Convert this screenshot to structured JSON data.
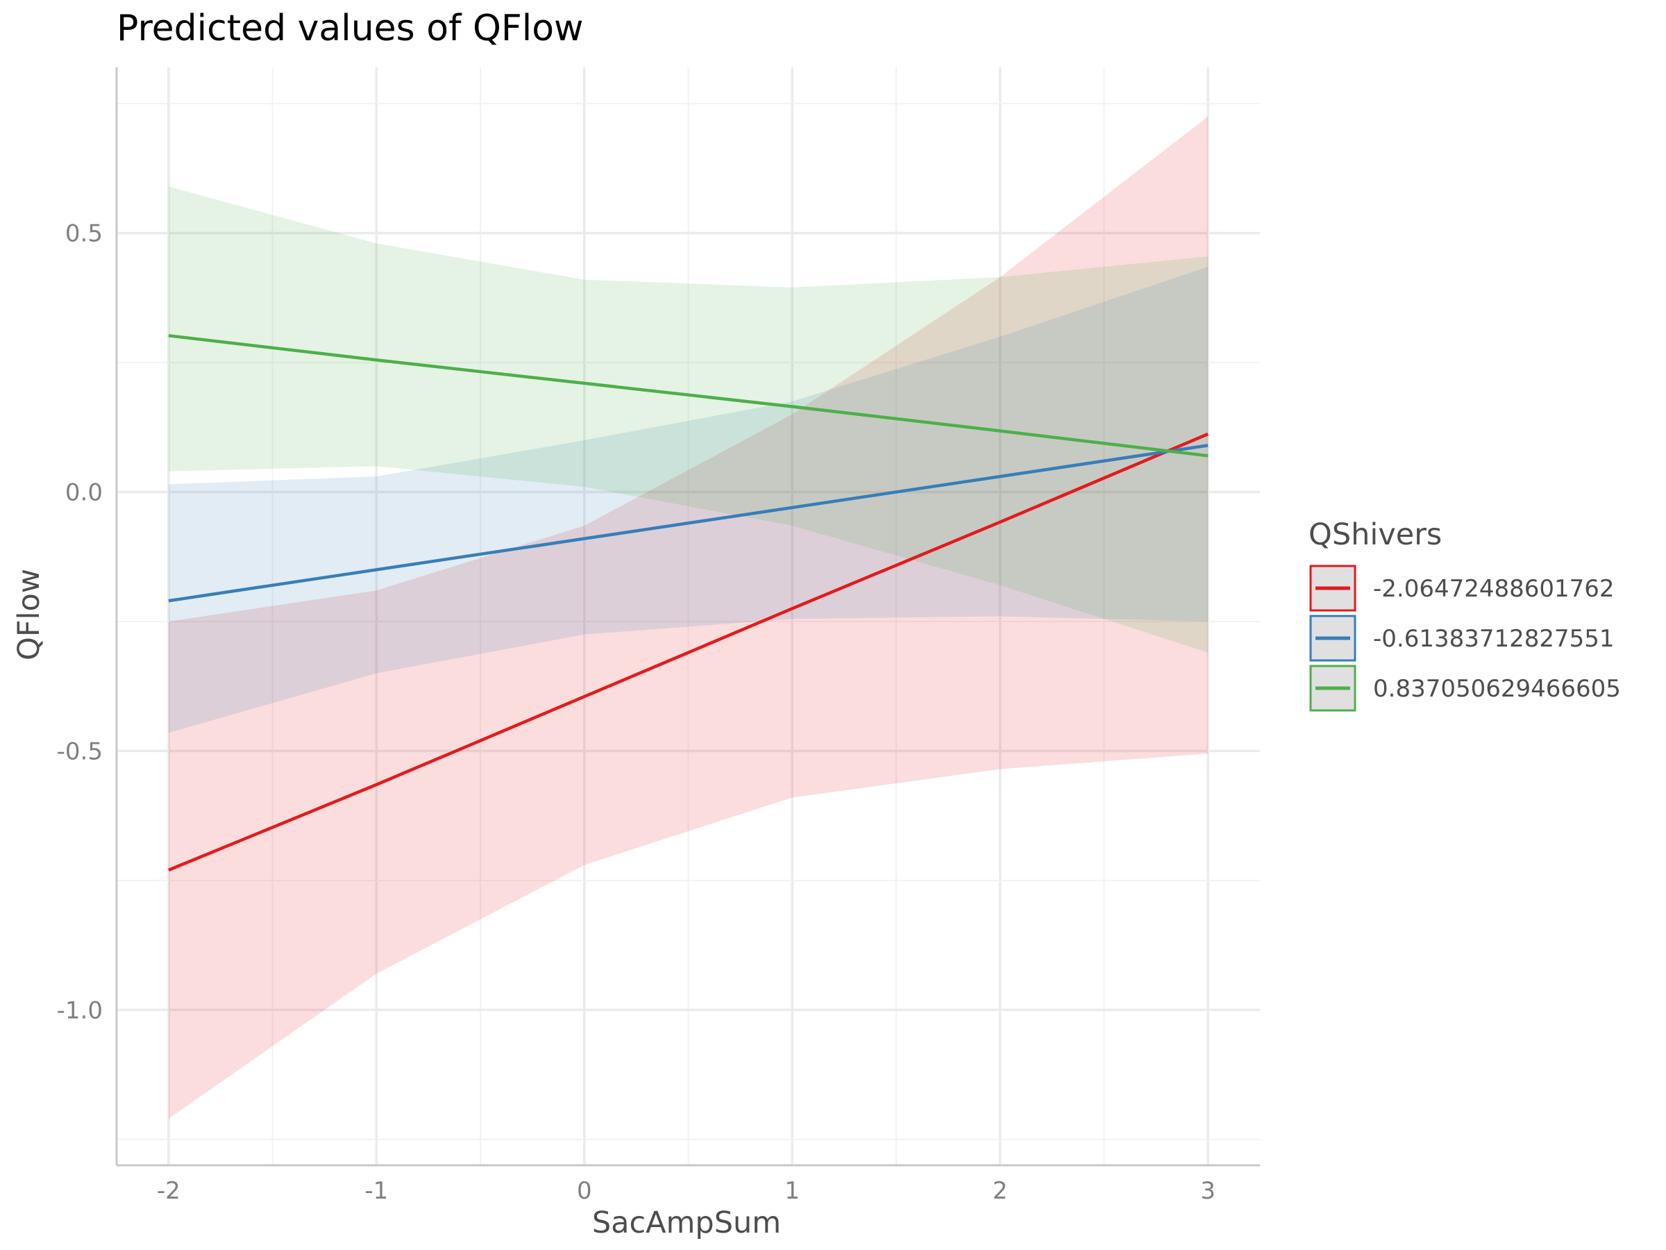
{
  "chart_data": {
    "type": "line",
    "title": "Predicted values of QFlow",
    "xlabel": "SacAmpSum",
    "ylabel": "QFlow",
    "xlim": [
      -2.25,
      3.25
    ],
    "ylim": [
      -1.3,
      0.82
    ],
    "xticks": [
      -2,
      -1,
      0,
      1,
      2,
      3
    ],
    "xtick_labels": [
      "-2",
      "-1",
      "0",
      "1",
      "2",
      "3"
    ],
    "yticks": [
      -1.0,
      -0.5,
      0.0,
      0.5
    ],
    "ytick_labels": [
      "-1.0",
      "-0.5",
      "0.0",
      "0.5"
    ],
    "x": [
      -2,
      -1,
      0,
      1,
      2,
      3
    ],
    "grid": true,
    "legend": {
      "title": "QShivers",
      "position": "right"
    },
    "series": [
      {
        "name": "-2.06472488601762",
        "color": "#e41a1c",
        "values": [
          -0.73,
          -0.565,
          -0.395,
          -0.225,
          -0.058,
          0.112
        ],
        "ci_low": [
          -1.21,
          -0.93,
          -0.72,
          -0.59,
          -0.535,
          -0.505
        ],
        "ci_high": [
          -0.25,
          -0.19,
          -0.065,
          0.15,
          0.415,
          0.725
        ]
      },
      {
        "name": "-0.61383712827551",
        "color": "#377eb8",
        "values": [
          -0.21,
          -0.15,
          -0.09,
          -0.03,
          0.03,
          0.09
        ],
        "ci_low": [
          -0.465,
          -0.35,
          -0.275,
          -0.245,
          -0.24,
          -0.25
        ],
        "ci_high": [
          0.015,
          0.03,
          0.1,
          0.175,
          0.3,
          0.435
        ]
      },
      {
        "name": "0.837050629466605",
        "color": "#4daf4a",
        "values": [
          0.302,
          0.255,
          0.21,
          0.165,
          0.118,
          0.07
        ],
        "ci_low": [
          0.04,
          0.05,
          0.01,
          -0.065,
          -0.18,
          -0.31
        ],
        "ci_high": [
          0.59,
          0.48,
          0.41,
          0.395,
          0.415,
          0.455
        ]
      }
    ]
  }
}
